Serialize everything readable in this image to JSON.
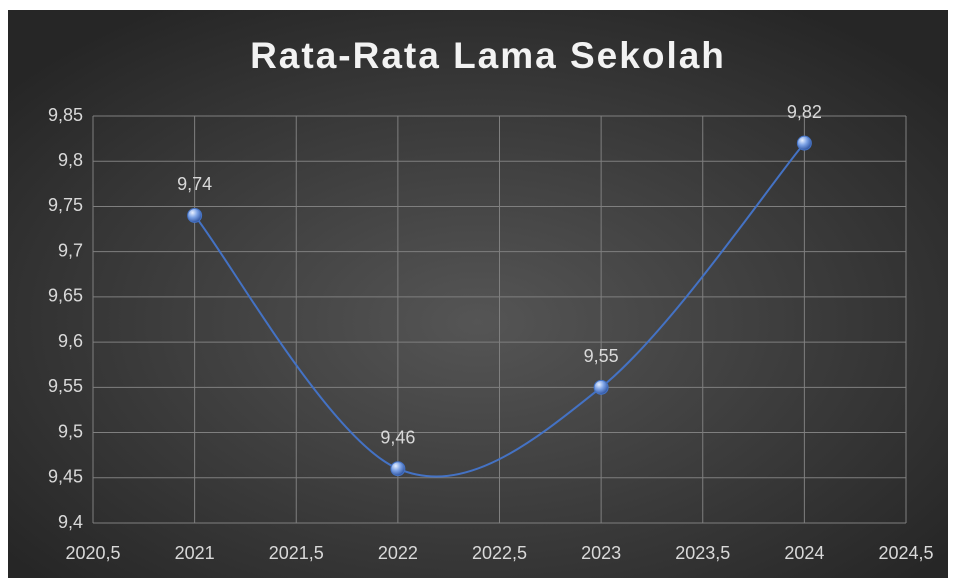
{
  "chart_data": {
    "type": "scatter_smooth",
    "title": "Rata-Rata Lama Sekolah",
    "x": [
      2021,
      2022,
      2023,
      2024
    ],
    "series": [
      {
        "name": "Rata-Rata Lama Sekolah",
        "color": "#4472c4",
        "values": [
          9.74,
          9.46,
          9.55,
          9.82
        ],
        "value_labels": [
          "9,74",
          "9,46",
          "9,55",
          "9,82"
        ]
      }
    ],
    "xlim": [
      2020.5,
      2024.5
    ],
    "xticks": [
      {
        "value": 2020.5,
        "label": "2020,5"
      },
      2021,
      {
        "value": 2021.5,
        "label": "2021,5"
      },
      2022,
      {
        "value": 2022.5,
        "label": "2022,5"
      },
      2023,
      {
        "value": 2023.5,
        "label": "2023,5"
      },
      2024,
      {
        "value": 2024.5,
        "label": "2024,5"
      }
    ],
    "ylim": [
      9.4,
      9.85
    ],
    "yticks": [
      {
        "value": 9.4,
        "label": "9,4"
      },
      {
        "value": 9.45,
        "label": "9,45"
      },
      {
        "value": 9.5,
        "label": "9,5"
      },
      {
        "value": 9.55,
        "label": "9,55"
      },
      {
        "value": 9.6,
        "label": "9,6"
      },
      {
        "value": 9.65,
        "label": "9,65"
      },
      {
        "value": 9.7,
        "label": "9,7"
      },
      {
        "value": 9.75,
        "label": "9,75"
      },
      {
        "value": 9.8,
        "label": "9,8"
      },
      {
        "value": 9.85,
        "label": "9,85"
      }
    ],
    "grid": true
  }
}
